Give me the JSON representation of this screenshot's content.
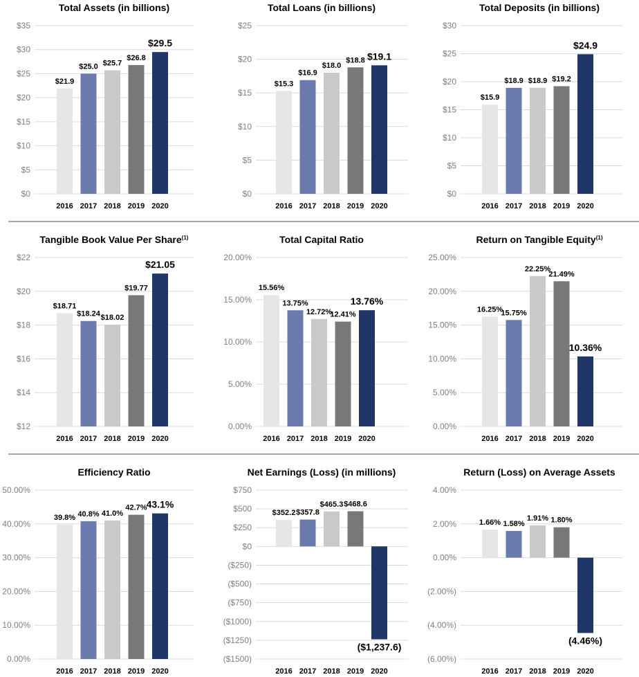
{
  "colors": [
    "#e6e6e6",
    "#6b7bae",
    "#c9c9c9",
    "#787878",
    "#1f3667"
  ],
  "chart_data": [
    {
      "type": "bar",
      "title": "Total Assets (in billions)",
      "title_superscript": "",
      "categories": [
        "2016",
        "2017",
        "2018",
        "2019",
        "2020"
      ],
      "values": [
        21.9,
        25.0,
        25.7,
        26.8,
        29.5
      ],
      "value_labels": [
        "$21.9",
        "$25.0",
        "$25.7",
        "$26.8",
        "$29.5"
      ],
      "ylim": [
        0,
        35
      ],
      "yticks": [
        0,
        5,
        10,
        15,
        20,
        25,
        30,
        35
      ],
      "ytick_labels": [
        "$0",
        "$5",
        "$10",
        "$15",
        "$20",
        "$25",
        "$30",
        "$35"
      ],
      "grid": true,
      "xlabel": "",
      "ylabel": ""
    },
    {
      "type": "bar",
      "title": "Total Loans (in billions)",
      "title_superscript": "",
      "categories": [
        "2016",
        "2017",
        "2018",
        "2019",
        "2020"
      ],
      "values": [
        15.3,
        16.9,
        18.0,
        18.8,
        19.1
      ],
      "value_labels": [
        "$15.3",
        "$16.9",
        "$18.0",
        "$18.8",
        "$19.1"
      ],
      "ylim": [
        0,
        25
      ],
      "yticks": [
        0,
        5,
        10,
        15,
        20,
        25
      ],
      "ytick_labels": [
        "$0",
        "$5",
        "$10",
        "$15",
        "$20",
        "$25"
      ],
      "grid": true,
      "xlabel": "",
      "ylabel": ""
    },
    {
      "type": "bar",
      "title": "Total Deposits (in billions)",
      "title_superscript": "",
      "categories": [
        "2016",
        "2017",
        "2018",
        "2019",
        "2020"
      ],
      "values": [
        15.9,
        18.9,
        18.9,
        19.2,
        24.9
      ],
      "value_labels": [
        "$15.9",
        "$18.9",
        "$18.9",
        "$19.2",
        "$24.9"
      ],
      "ylim": [
        0,
        30
      ],
      "yticks": [
        0,
        5,
        10,
        15,
        20,
        25,
        30
      ],
      "ytick_labels": [
        "$0",
        "$5",
        "$10",
        "$15",
        "$20",
        "$25",
        "$30"
      ],
      "grid": true,
      "xlabel": "",
      "ylabel": ""
    },
    {
      "type": "bar",
      "title": "Tangible Book Value Per Share",
      "title_superscript": "(1)",
      "categories": [
        "2016",
        "2017",
        "2018",
        "2019",
        "2020"
      ],
      "values": [
        18.71,
        18.24,
        18.02,
        19.77,
        21.05
      ],
      "value_labels": [
        "$18.71",
        "$18.24",
        "$18.02",
        "$19.77",
        "$21.05"
      ],
      "ylim": [
        12,
        22
      ],
      "yticks": [
        12,
        14,
        16,
        18,
        20,
        22
      ],
      "ytick_labels": [
        "$12",
        "$14",
        "$16",
        "$18",
        "$20",
        "$22"
      ],
      "grid": true,
      "xlabel": "",
      "ylabel": ""
    },
    {
      "type": "bar",
      "title": "Total Capital Ratio",
      "title_superscript": "",
      "categories": [
        "2016",
        "2017",
        "2018",
        "2019",
        "2020"
      ],
      "values": [
        15.56,
        13.75,
        12.72,
        12.41,
        13.76
      ],
      "value_labels": [
        "15.56%",
        "13.75%",
        "12.72%",
        "12.41%",
        "13.76%"
      ],
      "ylim": [
        0,
        20
      ],
      "yticks": [
        0,
        5,
        10,
        15,
        20
      ],
      "ytick_labels": [
        "0.00%",
        "5.00%",
        "10.00%",
        "15.00%",
        "20.00%"
      ],
      "grid": true,
      "xlabel": "",
      "ylabel": ""
    },
    {
      "type": "bar",
      "title": "Return on Tangible Equity",
      "title_superscript": "(1)",
      "categories": [
        "2016",
        "2017",
        "2018",
        "2019",
        "2020"
      ],
      "values": [
        16.25,
        15.75,
        22.25,
        21.49,
        10.36
      ],
      "value_labels": [
        "16.25%",
        "15.75%",
        "22.25%",
        "21.49%",
        "10.36%"
      ],
      "ylim": [
        0,
        25
      ],
      "yticks": [
        0,
        5,
        10,
        15,
        20,
        25
      ],
      "ytick_labels": [
        "0.00%",
        "5.00%",
        "10.00%",
        "15.00%",
        "20.00%",
        "25.00%"
      ],
      "grid": true,
      "xlabel": "",
      "ylabel": ""
    },
    {
      "type": "bar",
      "title": "Efficiency Ratio",
      "title_superscript": "",
      "categories": [
        "2016",
        "2017",
        "2018",
        "2019",
        "2020"
      ],
      "values": [
        39.8,
        40.8,
        41.0,
        42.7,
        43.1
      ],
      "value_labels": [
        "39.8%",
        "40.8%",
        "41.0%",
        "42.7%",
        "43.1%"
      ],
      "ylim": [
        0,
        50
      ],
      "yticks": [
        0,
        10,
        20,
        30,
        40,
        50
      ],
      "ytick_labels": [
        "0.00%",
        "10.00%",
        "20.00%",
        "30.00%",
        "40.00%",
        "50.00%"
      ],
      "grid": true,
      "xlabel": "",
      "ylabel": ""
    },
    {
      "type": "bar",
      "title": "Net Earnings (Loss) (in millions)",
      "title_superscript": "",
      "categories": [
        "2016",
        "2017",
        "2018",
        "2019",
        "2020"
      ],
      "values": [
        352.2,
        357.8,
        465.3,
        468.6,
        -1237.6
      ],
      "value_labels": [
        "$352.2",
        "$357.8",
        "$465.3",
        "$468.6",
        "($1,237.6)"
      ],
      "ylim": [
        -1500,
        750
      ],
      "yticks": [
        -1500,
        -1250,
        -1000,
        -750,
        -500,
        -250,
        0,
        250,
        500,
        750
      ],
      "ytick_labels": [
        "($1500)",
        "($1250)",
        "($1000)",
        "($750)",
        "($500)",
        "($250)",
        "$0",
        "$250",
        "$500",
        "$750"
      ],
      "grid": true,
      "xlabel": "",
      "ylabel": ""
    },
    {
      "type": "bar",
      "title": "Return (Loss) on Average Assets",
      "title_superscript": "",
      "categories": [
        "2016",
        "2017",
        "2018",
        "2019",
        "2020"
      ],
      "values": [
        1.66,
        1.58,
        1.91,
        1.8,
        -4.46
      ],
      "value_labels": [
        "1.66%",
        "1.58%",
        "1.91%",
        "1.80%",
        "(4.46%)"
      ],
      "ylim": [
        -6,
        4
      ],
      "yticks": [
        -6,
        -4,
        -2,
        0,
        2,
        4
      ],
      "ytick_labels": [
        "(6.00%)",
        "(4.00%)",
        "(2.00%)",
        "0.00%",
        "2.00%",
        "4.00%"
      ],
      "grid": true,
      "xlabel": "",
      "ylabel": ""
    }
  ]
}
